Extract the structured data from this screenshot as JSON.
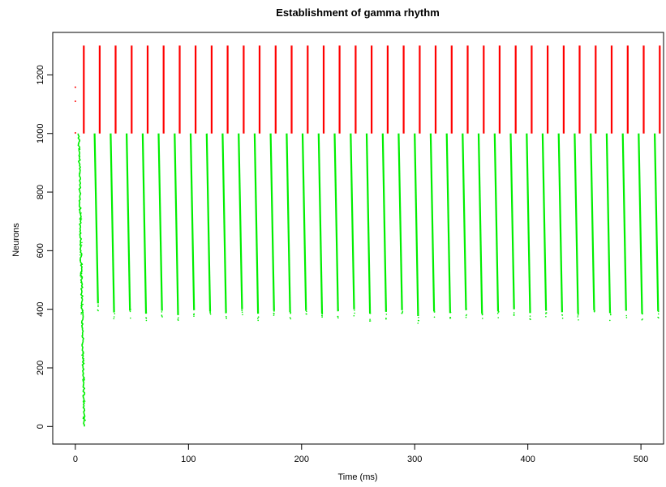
{
  "chart_data": {
    "type": "scatter",
    "title": "Establishment of gamma rhythm",
    "xlabel": "Time (ms)",
    "ylabel": "Neurons",
    "xlim": [
      -20,
      520
    ],
    "ylim": [
      -60,
      1345
    ],
    "xticks": [
      0,
      100,
      200,
      300,
      400,
      500
    ],
    "yticks": [
      0,
      200,
      400,
      600,
      800,
      1000,
      1200
    ],
    "grid": false,
    "legend": "none",
    "period_ms": 14.2,
    "series": [
      {
        "color": "#ff0000",
        "neuron_range": [
          1000,
          1300
        ],
        "initial_spikes": [
          {
            "t": 0,
            "neuron": 1158
          },
          {
            "t": 0,
            "neuron": 1110
          },
          {
            "t": 0,
            "neuron": 1002
          }
        ],
        "burst_times": [
          7.5,
          21.5,
          35.6,
          49.8,
          63.9,
          78.0,
          92.2,
          106.3,
          120.5,
          134.6,
          148.8,
          162.9,
          177.1,
          191.2,
          205.4,
          219.5,
          233.6,
          247.8,
          261.9,
          276.1,
          290.2,
          304.4,
          318.5,
          332.7,
          346.8,
          361.0,
          375.1,
          389.3,
          403.4,
          417.5,
          431.7,
          445.8,
          460.0,
          474.1,
          488.3,
          502.4,
          516.6
        ]
      },
      {
        "color": "#00ee00",
        "neuron_range": [
          0,
          1000
        ],
        "initial_sweep": {
          "t_start": 3,
          "t_end": 8,
          "neuron_low": 0,
          "neuron_high": 1000
        },
        "sweep_duration_ms": 3.0,
        "bursts": [
          {
            "t": 17.0,
            "low": 395
          },
          {
            "t": 31.2,
            "low": 365
          },
          {
            "t": 45.3,
            "low": 370
          },
          {
            "t": 59.5,
            "low": 360
          },
          {
            "t": 73.6,
            "low": 370
          },
          {
            "t": 87.8,
            "low": 355
          },
          {
            "t": 101.9,
            "low": 372
          },
          {
            "t": 116.1,
            "low": 368
          },
          {
            "t": 130.2,
            "low": 362
          },
          {
            "t": 144.4,
            "low": 375
          },
          {
            "t": 158.5,
            "low": 360
          },
          {
            "t": 172.6,
            "low": 370
          },
          {
            "t": 186.8,
            "low": 365
          },
          {
            "t": 200.9,
            "low": 372
          },
          {
            "t": 215.1,
            "low": 360
          },
          {
            "t": 229.2,
            "low": 368
          },
          {
            "t": 243.4,
            "low": 375
          },
          {
            "t": 257.5,
            "low": 360
          },
          {
            "t": 271.7,
            "low": 366
          },
          {
            "t": 285.8,
            "low": 372
          },
          {
            "t": 300.0,
            "low": 352
          },
          {
            "t": 314.1,
            "low": 368
          },
          {
            "t": 328.3,
            "low": 362
          },
          {
            "t": 342.4,
            "low": 372
          },
          {
            "t": 356.5,
            "low": 360
          },
          {
            "t": 370.7,
            "low": 368
          },
          {
            "t": 384.8,
            "low": 375
          },
          {
            "t": 399.0,
            "low": 362
          },
          {
            "t": 413.1,
            "low": 370
          },
          {
            "t": 427.3,
            "low": 365
          },
          {
            "t": 441.4,
            "low": 360
          },
          {
            "t": 455.6,
            "low": 372
          },
          {
            "t": 469.7,
            "low": 362
          },
          {
            "t": 483.9,
            "low": 370
          },
          {
            "t": 498.0,
            "low": 360
          },
          {
            "t": 512.2,
            "low": 368
          }
        ]
      }
    ]
  }
}
